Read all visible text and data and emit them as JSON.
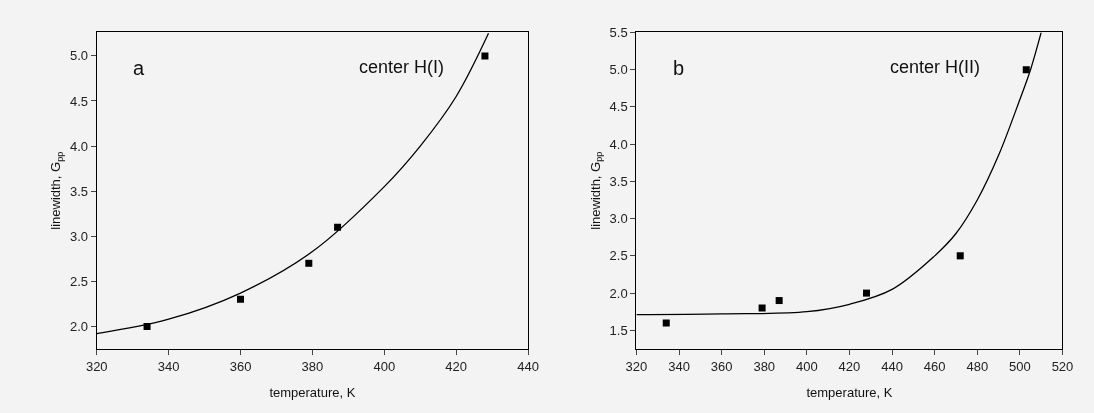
{
  "chart_data": [
    {
      "type": "scatter",
      "xlabel": "temperature, K",
      "ylabel": "linewidth, G$_{pp}$",
      "annotations": [
        "a",
        "center H(I)"
      ],
      "grid": false,
      "xlim": [
        320,
        440
      ],
      "ylim": [
        1.75,
        5.26
      ],
      "xticks": [
        320,
        340,
        360,
        380,
        400,
        420,
        440
      ],
      "yticks": [
        {
          "value": 2,
          "label": "2.0"
        },
        {
          "value": 2.5,
          "label": "2.5"
        },
        {
          "value": 3,
          "label": "3.0"
        },
        {
          "value": 3.5,
          "label": "3.5"
        },
        {
          "value": 4,
          "label": "4.0"
        },
        {
          "value": 4.5,
          "label": "4.5"
        },
        {
          "value": 5,
          "label": "5.0"
        }
      ],
      "series": [
        {
          "marker": "square",
          "color": "#000000",
          "x": [
            334,
            360,
            379,
            387,
            428
          ],
          "values": [
            2.0,
            2.3,
            2.7,
            3.1,
            5.0
          ]
        },
        {
          "type": "line",
          "marker": "none",
          "line_style": "solid",
          "color": "#000000",
          "x": [
            320,
            340,
            360,
            380,
            400,
            410,
            420,
            429
          ],
          "values": [
            1.92,
            2.08,
            2.37,
            2.83,
            3.55,
            4.0,
            4.55,
            5.25
          ]
        }
      ]
    },
    {
      "type": "scatter",
      "xlabel": "temperature, K",
      "ylabel": "linewidth, G$_{pp}$",
      "annotations": [
        "b",
        "center H(II)"
      ],
      "grid": false,
      "xlim": [
        320,
        520
      ],
      "ylim": [
        1.25,
        5.5
      ],
      "xticks": [
        320,
        340,
        360,
        380,
        400,
        420,
        440,
        460,
        480,
        500,
        520
      ],
      "yticks": [
        {
          "value": 1.5,
          "label": "1.5"
        },
        {
          "value": 2,
          "label": "2.0"
        },
        {
          "value": 2.5,
          "label": "2.5"
        },
        {
          "value": 3,
          "label": "3.0"
        },
        {
          "value": 3.5,
          "label": "3.5"
        },
        {
          "value": 4,
          "label": "4.0"
        },
        {
          "value": 4.5,
          "label": "4.5"
        },
        {
          "value": 5,
          "label": "5.0"
        },
        {
          "value": 5.5,
          "label": "5.5"
        }
      ],
      "series": [
        {
          "marker": "square",
          "color": "#000000",
          "x": [
            334,
            379,
            387,
            428,
            472,
            503
          ],
          "values": [
            1.6,
            1.8,
            1.9,
            2.0,
            2.5,
            5.0
          ]
        },
        {
          "type": "line",
          "marker": "none",
          "line_style": "solid",
          "color": "#000000",
          "x": [
            320,
            360,
            400,
            420,
            440,
            460,
            470,
            480,
            490,
            500,
            505,
            510
          ],
          "values": [
            1.71,
            1.72,
            1.75,
            1.85,
            2.05,
            2.5,
            2.8,
            3.25,
            3.85,
            4.6,
            5.0,
            5.5
          ]
        }
      ]
    }
  ]
}
